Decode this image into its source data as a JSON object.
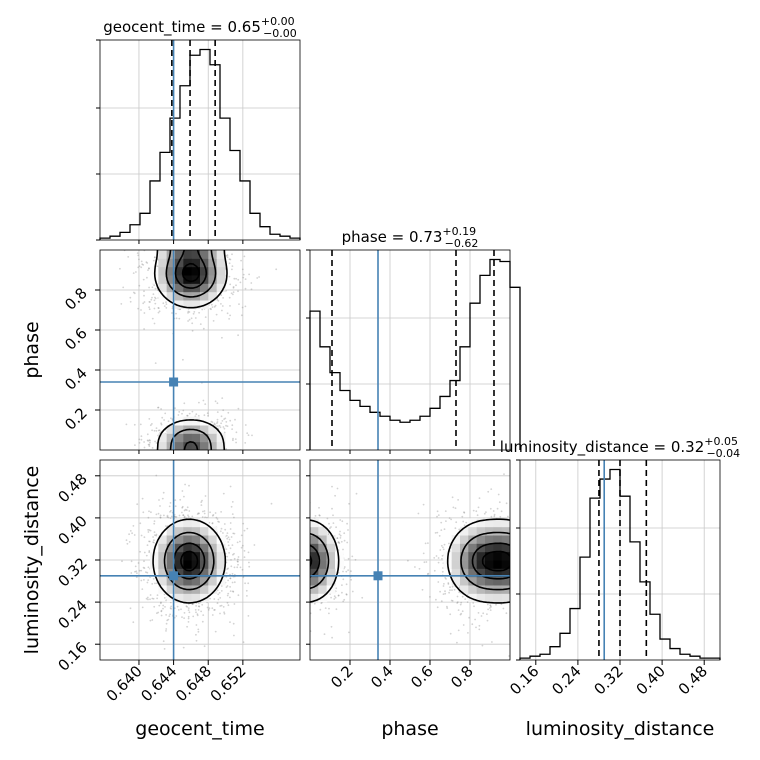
{
  "chart_data": {
    "type": "corner",
    "parameters": [
      "geocent_time",
      "phase",
      "luminosity_distance"
    ],
    "titles": [
      {
        "param": "geocent_time",
        "prefix": "geocent_time = ",
        "median": "0.65",
        "plus": "+0.00",
        "minus": "−0.00"
      },
      {
        "param": "phase",
        "prefix": "phase = ",
        "median": "0.73",
        "plus": "+0.19",
        "minus": "−0.62"
      },
      {
        "param": "luminosity_distance",
        "prefix": "luminosity_distance = ",
        "median": "0.32",
        "plus": "+0.05",
        "minus": "−0.04"
      }
    ],
    "axes": {
      "geocent_time": {
        "range": [
          0.6355,
          0.6586
        ],
        "ticks": [
          "0.640",
          "0.644",
          "0.648",
          "0.652"
        ]
      },
      "phase": {
        "range": [
          0.0,
          1.0
        ],
        "ticks": [
          "0.2",
          "0.4",
          "0.6",
          "0.8"
        ]
      },
      "luminosity_distance": {
        "range": [
          0.13,
          0.51
        ],
        "ticks": [
          "0.16",
          "0.24",
          "0.32",
          "0.40",
          "0.48"
        ]
      }
    },
    "truths": {
      "geocent_time": 0.644,
      "phase": 0.34,
      "luminosity_distance": 0.29
    },
    "quantiles": {
      "geocent_time": [
        0.6438,
        0.6459,
        0.6488
      ],
      "phase": [
        0.11,
        0.73,
        0.92
      ],
      "luminosity_distance": [
        0.28,
        0.32,
        0.37
      ]
    },
    "histograms": {
      "geocent_time": {
        "edges_start": 0.6355,
        "bin_width": 0.001155,
        "counts": [
          1,
          2,
          4,
          8,
          14,
          31,
          46,
          64,
          81,
          97,
          100,
          92,
          64,
          47,
          31,
          14,
          7,
          3,
          2,
          1
        ]
      },
      "phase": {
        "edges_start": 0.0,
        "bin_width": 0.05,
        "counts": [
          70,
          52,
          39,
          30,
          25,
          22,
          19,
          17,
          15,
          14,
          15,
          17,
          21,
          27,
          35,
          52,
          74,
          88,
          96,
          95,
          82
        ]
      },
      "luminosity_distance": {
        "edges_start": 0.13,
        "bin_width": 0.019,
        "counts": [
          1,
          2,
          3,
          7,
          14,
          27,
          54,
          85,
          95,
          100,
          86,
          62,
          41,
          24,
          11,
          6,
          3,
          2,
          1,
          1
        ]
      }
    },
    "density_2d": [
      {
        "x": "geocent_time",
        "y": "phase",
        "components": [
          {
            "mx": 0.646,
            "my": 0.88,
            "sx": 0.0021,
            "sy": 0.085,
            "w": 1.0
          },
          {
            "mx": 0.646,
            "my": 0.05,
            "sx": 0.0021,
            "sy": 0.06,
            "w": 0.55
          }
        ]
      },
      {
        "x": "geocent_time",
        "y": "luminosity_distance",
        "components": [
          {
            "mx": 0.6458,
            "my": 0.318,
            "sx": 0.0021,
            "sy": 0.04,
            "w": 1.0
          }
        ]
      },
      {
        "x": "phase",
        "y": "luminosity_distance",
        "components": [
          {
            "mx": 0.88,
            "my": 0.318,
            "sx": 0.1,
            "sy": 0.04,
            "w": 1.0
          },
          {
            "mx": 0.02,
            "my": 0.318,
            "sx": 0.07,
            "sy": 0.04,
            "w": 0.6
          }
        ]
      }
    ],
    "colors": {
      "truth": "#4682b4",
      "hist": "#000000",
      "grid": "#c8c8c8",
      "points": "#808080"
    },
    "grid": true
  }
}
